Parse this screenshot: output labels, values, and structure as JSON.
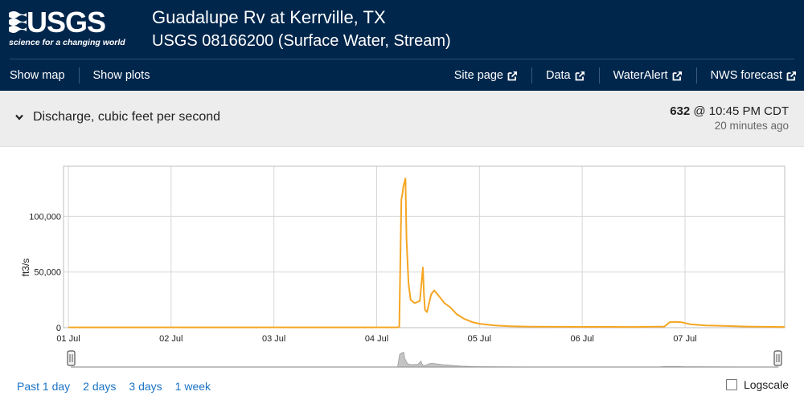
{
  "header": {
    "logo_text": "USGS",
    "logo_tagline": "science for a changing world",
    "title": "Guadalupe Rv at Kerrville, TX",
    "subtitle": "USGS 08166200 (Surface Water, Stream)"
  },
  "nav": {
    "left": [
      {
        "label": "Show map",
        "name": "show-map-link"
      },
      {
        "label": "Show plots",
        "name": "show-plots-link"
      }
    ],
    "right": [
      {
        "label": "Site page",
        "name": "site-page-link"
      },
      {
        "label": "Data",
        "name": "data-link"
      },
      {
        "label": "WaterAlert",
        "name": "wateralert-link"
      },
      {
        "label": "NWS forecast",
        "name": "nws-forecast-link"
      }
    ]
  },
  "parameter": {
    "label": "Discharge, cubic feet per second",
    "latest_value": "632",
    "latest_time": " @ 10:45 PM CDT",
    "ago": "20 minutes ago"
  },
  "chart_data": {
    "type": "line",
    "title": "",
    "xlabel": "",
    "ylabel": "ft3/s",
    "x_ticks": [
      "01 Jul",
      "02 Jul",
      "03 Jul",
      "04 Jul",
      "05 Jul",
      "06 Jul",
      "07 Jul"
    ],
    "y_ticks": [
      "0",
      "50,000",
      "100,000"
    ],
    "y_tick_values": [
      0,
      50000,
      100000
    ],
    "ylim": [
      0,
      145000
    ],
    "xlim_days": [
      0,
      6.97
    ],
    "grid": true,
    "line_color": "#f5a623",
    "series": [
      {
        "x_days": [
          0,
          1,
          2,
          3,
          3.2,
          3.22,
          3.24,
          3.25,
          3.26,
          3.28,
          3.29,
          3.31,
          3.33,
          3.37,
          3.42,
          3.45,
          3.46,
          3.47,
          3.49,
          3.53,
          3.56,
          3.6,
          3.66,
          3.72,
          3.78,
          3.85,
          3.93,
          4,
          4.15,
          4.3,
          4.5,
          5,
          5.5,
          5.8,
          5.85,
          5.9,
          5.97,
          6.05,
          6.2,
          6.4,
          6.6,
          6.97
        ],
        "y_cfs": [
          300,
          300,
          300,
          300,
          300,
          800,
          115000,
          120000,
          127000,
          134000,
          80000,
          40000,
          25000,
          22000,
          24000,
          54000,
          30000,
          16000,
          14000,
          30000,
          33500,
          29000,
          22000,
          18000,
          12000,
          8000,
          5000,
          3500,
          2000,
          1300,
          900,
          700,
          650,
          1000,
          4800,
          5200,
          4800,
          3000,
          2000,
          1500,
          1000,
          632
        ]
      }
    ]
  },
  "periods": [
    {
      "label": "Past 1 day",
      "name": "period-1-day-link"
    },
    {
      "label": "2 days",
      "name": "period-2-days-link"
    },
    {
      "label": "3 days",
      "name": "period-3-days-link"
    },
    {
      "label": "1 week",
      "name": "period-1-week-link"
    }
  ],
  "logscale_label": "Logscale"
}
